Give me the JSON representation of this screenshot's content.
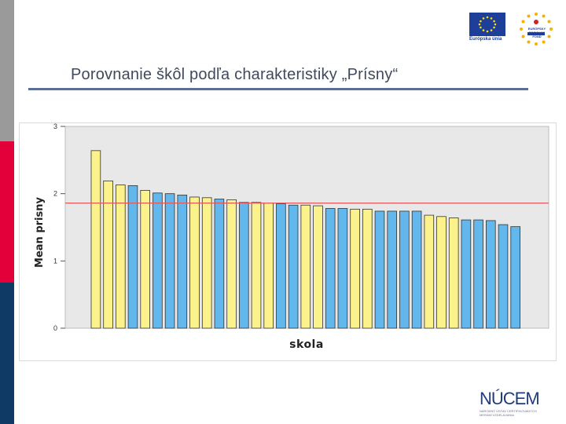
{
  "slide": {
    "title": "Porovnanie škôl podľa charakteristiky „Prísny“"
  },
  "logos": {
    "eu_text": "Európska únia",
    "esf_text": "EURÓPSKY SOCIÁLNY FOND",
    "nucem_word": "NÚCEM",
    "nucem_sub1": "NÁRODNÝ ÚSTAV CERTIFIKOVANÝCH",
    "nucem_sub2": "MERANÍ VZDELÁVANIA"
  },
  "colors": {
    "yellow": "#fbf28c",
    "blue": "#62b8ec",
    "reference_line": "#e45a5a",
    "plot_bg": "#e8e8e8",
    "strip_gray": "#9a9a9a",
    "strip_red": "#e3003a",
    "strip_navy": "#0f3a66"
  },
  "chart_data": {
    "type": "bar",
    "title": "",
    "xlabel": "skola",
    "ylabel": "Mean prisny",
    "ylim": [
      0,
      3
    ],
    "yticks": [
      "0",
      "1",
      "2",
      "3"
    ],
    "grid": false,
    "reference_line": 1.86,
    "values": [
      2.64,
      2.19,
      2.13,
      2.12,
      2.05,
      2.01,
      2.0,
      1.98,
      1.95,
      1.94,
      1.92,
      1.91,
      1.87,
      1.87,
      1.86,
      1.85,
      1.83,
      1.83,
      1.82,
      1.78,
      1.78,
      1.77,
      1.77,
      1.74,
      1.74,
      1.74,
      1.74,
      1.68,
      1.66,
      1.64,
      1.61,
      1.61,
      1.6,
      1.54,
      1.51
    ],
    "bar_colors": [
      "yellow",
      "yellow",
      "yellow",
      "blue",
      "yellow",
      "blue",
      "blue",
      "blue",
      "yellow",
      "yellow",
      "blue",
      "yellow",
      "blue",
      "yellow",
      "yellow",
      "blue",
      "blue",
      "yellow",
      "yellow",
      "blue",
      "blue",
      "yellow",
      "yellow",
      "blue",
      "blue",
      "blue",
      "blue",
      "yellow",
      "yellow",
      "yellow",
      "blue",
      "blue",
      "blue",
      "blue",
      "blue"
    ]
  }
}
